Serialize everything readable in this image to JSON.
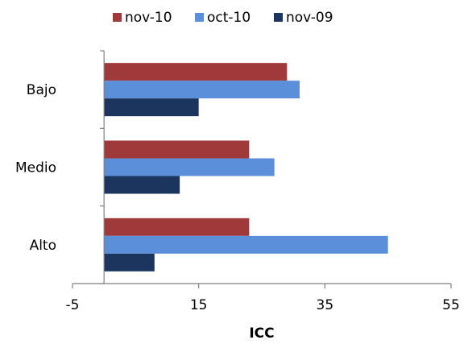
{
  "chart_data": {
    "type": "bar",
    "orientation": "horizontal",
    "categories": [
      "Alto",
      "Medio",
      "Bajo"
    ],
    "series": [
      {
        "name": "nov-10",
        "color": "#A0393A",
        "values": [
          23,
          23,
          29
        ]
      },
      {
        "name": "oct-10",
        "color": "#5B8FD9",
        "values": [
          45,
          27,
          31
        ]
      },
      {
        "name": "nov-09",
        "color": "#1C355E",
        "values": [
          8,
          12,
          15
        ]
      }
    ],
    "xlabel": "ICC",
    "ylabel": "",
    "title": "",
    "xlim": [
      -5,
      55
    ],
    "xticks": [
      -5,
      15,
      35,
      55
    ],
    "baseline": 0,
    "grid": false,
    "legend_position": "top"
  }
}
